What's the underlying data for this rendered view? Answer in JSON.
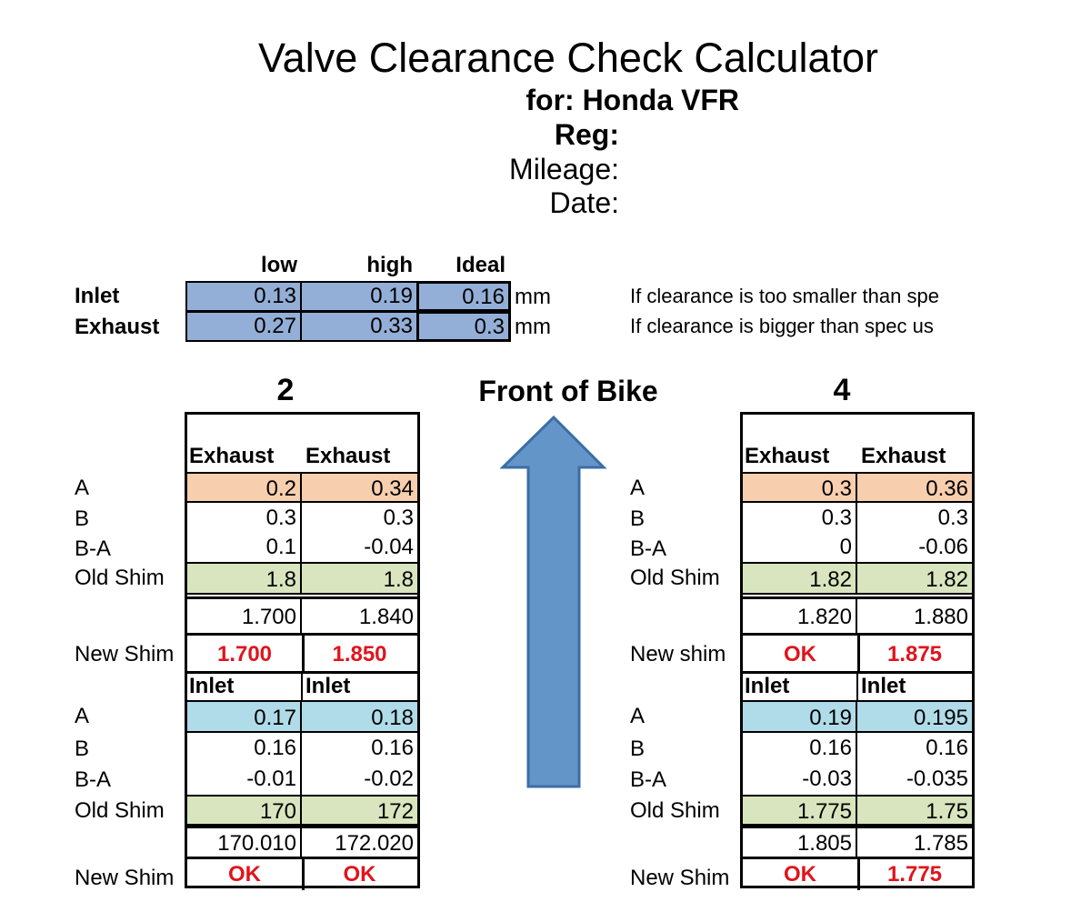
{
  "header": {
    "title": "Valve Clearance Check Calculator",
    "for_line": "for: Honda VFR",
    "reg_label": "Reg:",
    "mileage_label": "Mileage:",
    "date_label": "Date:"
  },
  "spec": {
    "col_low": "low",
    "col_high": "high",
    "col_ideal": "Ideal",
    "unit": "mm",
    "inlet": {
      "label": "Inlet",
      "low": "0.13",
      "high": "0.19",
      "ideal": "0.16"
    },
    "exhaust": {
      "label": "Exhaust",
      "low": "0.27",
      "high": "0.33",
      "ideal": "0.3"
    },
    "note_small": "If clearance is too smaller than spe",
    "note_big": "If clearance is bigger than spec us"
  },
  "front_label": "Front of Bike",
  "arrow_color": "#6495c9",
  "colors": {
    "spec_fill": "#94afd7",
    "measured_exhaust": "#f8cfae",
    "old_shim": "#d8e5be",
    "measured_inlet": "#b0dbe8",
    "result_red": "#e0141d"
  },
  "cyl2": {
    "number": "2",
    "exhaust": {
      "col_labels": [
        "Exhaust",
        "Exhaust"
      ],
      "row_labels": {
        "a": "A",
        "b": "B",
        "ba": "B-A",
        "old": "Old Shim",
        "new": "New Shim"
      },
      "a": [
        "0.2",
        "0.34"
      ],
      "b": [
        "0.3",
        "0.3"
      ],
      "ba": [
        "0.1",
        "-0.04"
      ],
      "old": [
        "1.8",
        "1.8"
      ],
      "calc": [
        "1.700",
        "1.840"
      ],
      "new": [
        "1.700",
        "1.850"
      ]
    },
    "inlet": {
      "col_labels": [
        "Inlet",
        "Inlet"
      ],
      "row_labels": {
        "a": "A",
        "b": "B",
        "ba": "B-A",
        "old": "Old Shim",
        "new": "New Shim"
      },
      "a": [
        "0.17",
        "0.18"
      ],
      "b": [
        "0.16",
        "0.16"
      ],
      "ba": [
        "-0.01",
        "-0.02"
      ],
      "old": [
        "170",
        "172"
      ],
      "calc": [
        "170.010",
        "172.020"
      ],
      "new": [
        "OK",
        "OK"
      ]
    }
  },
  "cyl4": {
    "number": "4",
    "exhaust": {
      "col_labels": [
        "Exhaust",
        "Exhaust"
      ],
      "row_labels": {
        "a": "A",
        "b": "B",
        "ba": "B-A",
        "old": "Old Shim",
        "new": "New shim"
      },
      "a": [
        "0.3",
        "0.36"
      ],
      "b": [
        "0.3",
        "0.3"
      ],
      "ba": [
        "0",
        "-0.06"
      ],
      "old": [
        "1.82",
        "1.82"
      ],
      "calc": [
        "1.820",
        "1.880"
      ],
      "new": [
        "OK",
        "1.875"
      ]
    },
    "inlet": {
      "col_labels": [
        "Inlet",
        "Inlet"
      ],
      "row_labels": {
        "a": "A",
        "b": "B",
        "ba": "B-A",
        "old": "Old Shim",
        "new": "New Shim"
      },
      "a": [
        "0.19",
        "0.195"
      ],
      "b": [
        "0.16",
        "0.16"
      ],
      "ba": [
        "-0.03",
        "-0.035"
      ],
      "old": [
        "1.775",
        "1.75"
      ],
      "calc": [
        "1.805",
        "1.785"
      ],
      "new": [
        "OK",
        "1.775"
      ]
    }
  }
}
